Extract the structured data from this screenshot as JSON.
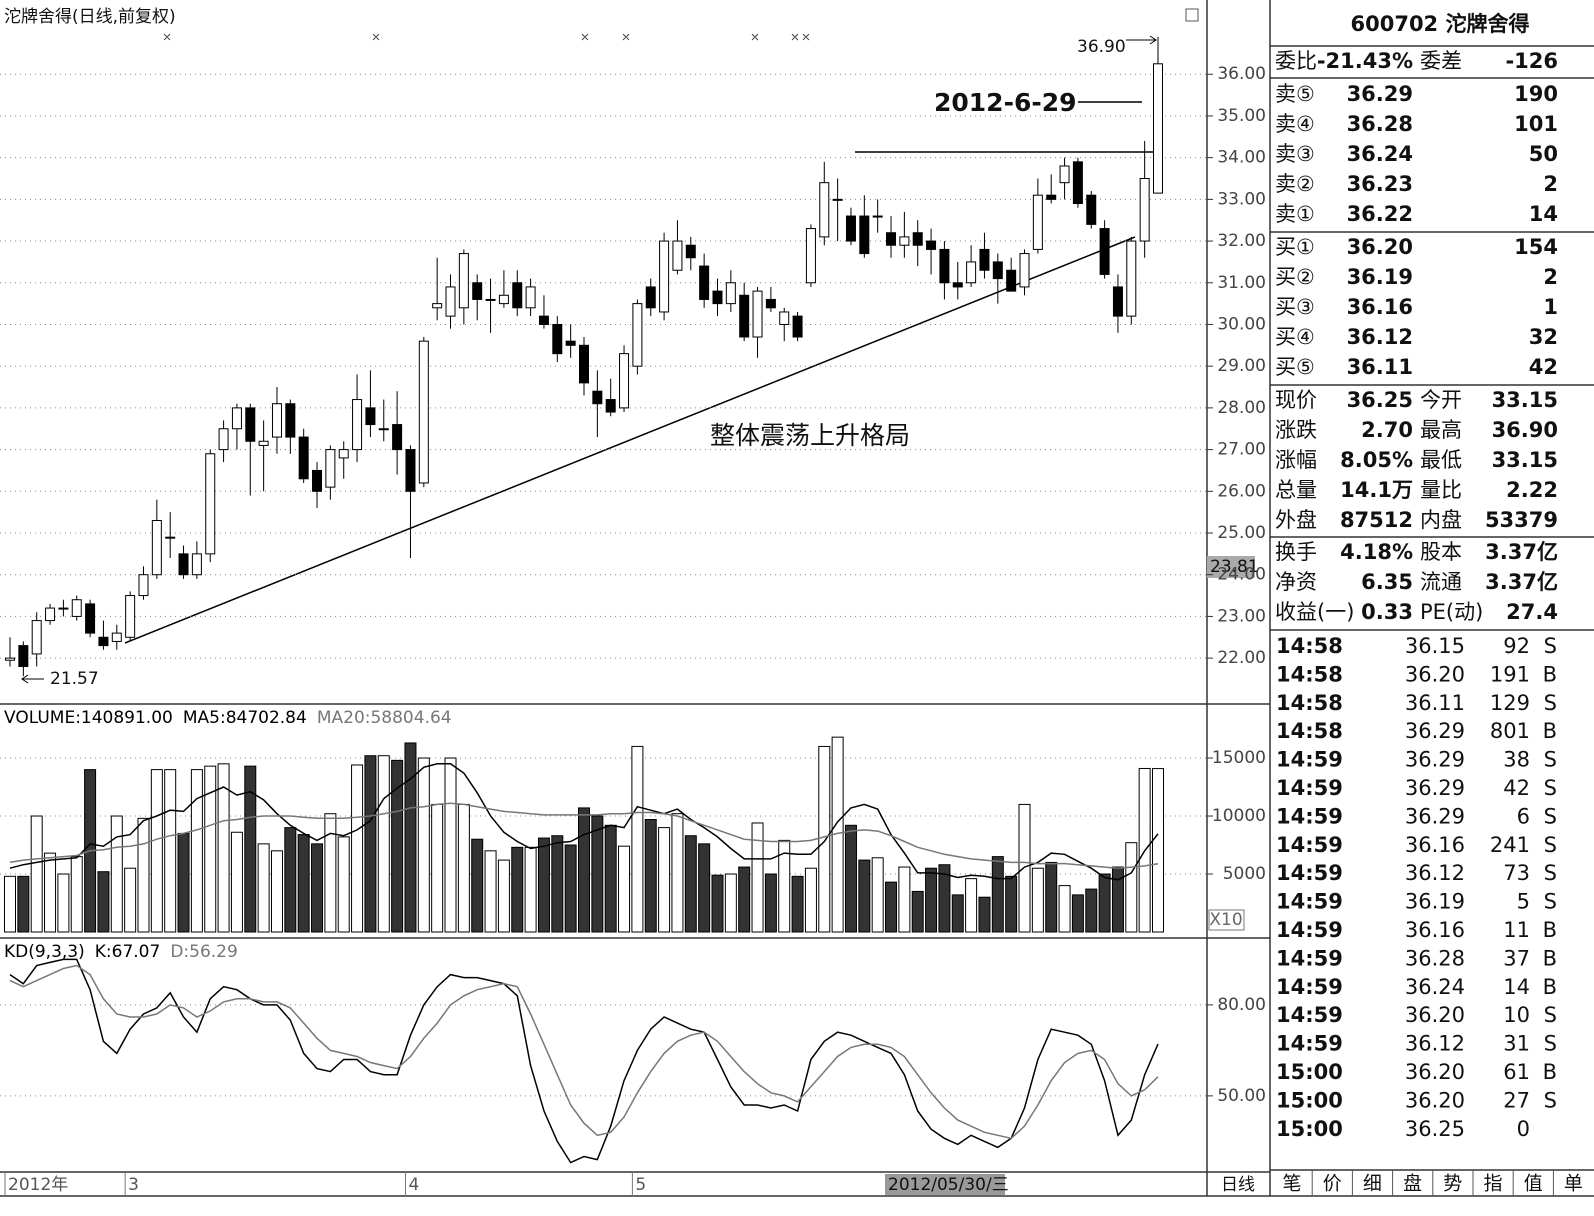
{
  "chart_data": [
    {
      "type": "candlestick",
      "title": "沱牌舍得(日线,前复权)",
      "categories": [
        "2012年",
        null,
        null,
        null,
        null,
        null,
        null,
        null,
        null,
        "3",
        null,
        null,
        null,
        null,
        null,
        null,
        null,
        null,
        null,
        null,
        null,
        null,
        null,
        null,
        null,
        null,
        null,
        null,
        null,
        null,
        "4",
        null,
        null,
        null,
        null,
        null,
        null,
        null,
        null,
        null,
        null,
        null,
        null,
        null,
        null,
        null,
        null,
        "5",
        null,
        null,
        null,
        null,
        null,
        null,
        null,
        null,
        null,
        null,
        null,
        null,
        null,
        null,
        null,
        null,
        null,
        null,
        null,
        null,
        null,
        null,
        null,
        null,
        null,
        null,
        null,
        null,
        null,
        null,
        null,
        null,
        null,
        null,
        null,
        null,
        null,
        null,
        null
      ],
      "open": [
        21.95,
        22.3,
        22.1,
        22.9,
        23.2,
        23.0,
        23.3,
        22.5,
        22.4,
        22.5,
        23.5,
        24.0,
        24.9,
        24.5,
        24.0,
        24.5,
        27.0,
        27.5,
        28.0,
        27.1,
        27.3,
        28.1,
        27.3,
        26.5,
        26.1,
        26.8,
        27.0,
        28.0,
        27.5,
        27.6,
        27.0,
        26.2,
        30.4,
        30.2,
        30.4,
        31.0,
        30.6,
        30.5,
        31.0,
        30.4,
        30.2,
        30.0,
        29.6,
        29.5,
        28.4,
        28.2,
        28.0,
        29.0,
        30.9,
        30.3,
        31.3,
        31.9,
        31.4,
        30.8,
        30.5,
        30.7,
        29.7,
        30.6,
        30.0,
        30.2,
        31.0,
        32.1,
        33.0,
        32.6,
        32.6,
        32.6,
        32.2,
        31.9,
        32.2,
        32.0,
        31.8,
        31.0,
        31.0,
        31.8,
        31.5,
        31.3,
        30.9,
        31.8,
        33.1,
        33.4,
        33.9,
        33.1,
        32.3,
        30.9,
        30.2,
        32.0,
        33.15
      ],
      "high": [
        22.5,
        22.4,
        23.1,
        23.3,
        23.4,
        23.5,
        23.4,
        22.9,
        22.8,
        23.6,
        24.2,
        25.8,
        25.5,
        24.7,
        24.8,
        27.0,
        27.7,
        28.1,
        28.1,
        27.7,
        28.5,
        28.2,
        27.5,
        26.7,
        27.1,
        27.2,
        28.8,
        28.9,
        28.2,
        28.4,
        27.1,
        29.7,
        31.6,
        31.2,
        31.8,
        31.2,
        31.1,
        31.3,
        31.3,
        31.1,
        30.7,
        30.2,
        30.0,
        29.7,
        28.9,
        28.7,
        29.5,
        30.6,
        31.1,
        32.2,
        32.5,
        32.1,
        31.7,
        31.1,
        31.3,
        31.0,
        30.9,
        30.9,
        30.4,
        30.3,
        32.4,
        33.9,
        33.5,
        32.8,
        33.1,
        33.0,
        32.6,
        32.7,
        32.5,
        32.3,
        32.0,
        31.5,
        31.9,
        32.2,
        31.7,
        31.6,
        31.8,
        33.5,
        33.6,
        34.0,
        34.0,
        33.2,
        32.5,
        31.2,
        32.1,
        34.4,
        36.9
      ],
      "low": [
        21.8,
        21.57,
        21.8,
        22.8,
        23.0,
        22.9,
        22.5,
        22.2,
        22.2,
        22.4,
        23.4,
        23.9,
        24.4,
        23.9,
        23.9,
        24.3,
        26.7,
        27.0,
        25.9,
        26.0,
        26.9,
        26.9,
        26.2,
        25.6,
        25.8,
        26.3,
        26.7,
        27.3,
        27.2,
        26.4,
        24.4,
        26.1,
        30.1,
        29.9,
        30.0,
        30.1,
        29.8,
        30.4,
        30.2,
        30.2,
        29.9,
        29.1,
        29.2,
        28.3,
        27.3,
        27.8,
        27.9,
        28.8,
        30.2,
        30.1,
        31.2,
        31.3,
        30.4,
        30.2,
        30.3,
        29.6,
        29.2,
        30.3,
        29.6,
        29.6,
        30.9,
        31.9,
        32.0,
        31.9,
        31.6,
        32.2,
        31.6,
        31.6,
        31.4,
        31.2,
        30.6,
        30.6,
        30.9,
        31.1,
        30.5,
        30.8,
        30.7,
        31.7,
        32.9,
        33.0,
        32.8,
        32.3,
        31.1,
        29.8,
        30.0,
        31.6,
        33.15
      ],
      "close": [
        22.0,
        21.8,
        22.9,
        23.2,
        23.2,
        23.4,
        22.6,
        22.3,
        22.6,
        23.5,
        24.0,
        25.3,
        24.9,
        24.0,
        24.5,
        26.9,
        27.5,
        28.0,
        27.2,
        27.2,
        28.1,
        27.3,
        26.3,
        26.0,
        27.0,
        27.0,
        28.2,
        27.6,
        27.5,
        27.0,
        26.0,
        29.6,
        30.5,
        30.9,
        31.7,
        30.6,
        30.6,
        30.7,
        30.4,
        30.9,
        30.0,
        29.3,
        29.5,
        28.6,
        28.1,
        27.9,
        29.3,
        30.5,
        30.4,
        32.0,
        32.0,
        31.6,
        30.6,
        30.5,
        31.0,
        29.7,
        30.8,
        30.4,
        30.3,
        29.7,
        32.3,
        33.4,
        33.0,
        32.0,
        31.7,
        32.6,
        31.9,
        32.1,
        31.9,
        31.8,
        31.0,
        30.9,
        31.5,
        31.3,
        31.1,
        30.8,
        31.7,
        33.1,
        33.0,
        33.8,
        32.9,
        32.4,
        31.2,
        30.2,
        32.0,
        33.5,
        36.25
      ],
      "ylim": [
        20.9,
        37.78
      ],
      "yticks": [
        {
          "value": 22,
          "label": "22.00"
        },
        {
          "value": 23,
          "label": "23.00"
        },
        {
          "value": 24,
          "label": "24.00"
        },
        {
          "value": 25,
          "label": "25.00"
        },
        {
          "value": 26,
          "label": "26.00"
        },
        {
          "value": 27,
          "label": "27.00"
        },
        {
          "value": 28,
          "label": "28.00"
        },
        {
          "value": 29,
          "label": "29.00"
        },
        {
          "value": 30,
          "label": "30.00"
        },
        {
          "value": 31,
          "label": "31.00"
        },
        {
          "value": 32,
          "label": "32.00"
        },
        {
          "value": 33,
          "label": "33.00"
        },
        {
          "value": 34,
          "label": "34.00"
        },
        {
          "value": 35,
          "label": "35.00"
        },
        {
          "value": 36,
          "label": "36.00"
        }
      ],
      "grid": true,
      "cursor_value": "23.81",
      "cursor_date": "2012/05/30/三",
      "annotations": [
        "36.90",
        "21.57",
        "2012-6-29",
        "整体震荡上升格局"
      ]
    },
    {
      "type": "bar",
      "legend": [
        "VOLUME:140891.00",
        "MA5:84702.84",
        "MA20:58804.64"
      ],
      "unit": "X10",
      "series": [
        {
          "color": "#000",
          "values": [
            4800,
            4800,
            10000,
            6800,
            5000,
            6500,
            14000,
            5200,
            10000,
            5500,
            9800,
            14000,
            14000,
            8500,
            14000,
            14300,
            14500,
            8600,
            14300,
            7600,
            7000,
            9000,
            8400,
            7600,
            10200,
            8200,
            14400,
            15200,
            15200,
            14800,
            16300,
            15000,
            11000,
            15000,
            11000,
            8000,
            7000,
            6200,
            7300,
            7300,
            8100,
            8300,
            7500,
            10700,
            10000,
            9200,
            7400,
            16000,
            9700,
            9000,
            10200,
            8300,
            7600,
            4900,
            5000,
            5600,
            9400,
            5000,
            7900,
            4800,
            5500,
            16000,
            16800,
            9200,
            6200,
            6400,
            4300,
            5600,
            3500,
            5500,
            5800,
            3200,
            4600,
            3000,
            6500,
            4800,
            11000,
            5500,
            6000,
            4000,
            3200,
            3700,
            5000,
            5600,
            7700,
            14100,
            14089.1
          ]
        },
        {
          "color": "#000",
          "values": [
            5500,
            5800,
            6000,
            6200,
            6300,
            6400,
            7600,
            7400,
            8200,
            8400,
            9600,
            10000,
            10500,
            10400,
            11500,
            12000,
            12500,
            11800,
            12100,
            11400,
            10200,
            9200,
            8500,
            7900,
            8500,
            8300,
            8800,
            9600,
            11500,
            12400,
            13200,
            14200,
            14500,
            14500,
            13700,
            12000,
            10000,
            8600,
            7800,
            7200,
            7400,
            7700,
            7800,
            8400,
            8800,
            9200,
            9000,
            10800,
            10500,
            10200,
            10600,
            9700,
            9000,
            8200,
            7200,
            6300,
            6300,
            6300,
            6800,
            6700,
            6700,
            7800,
            9500,
            10700,
            11000,
            10600,
            8400,
            6800,
            5100,
            5100,
            5000,
            4700,
            4900,
            4800,
            4600,
            4600,
            5600,
            6000,
            6800,
            6700,
            6100,
            5500,
            4700,
            4500,
            5100,
            7000,
            8470
          ]
        },
        {
          "color": "#777",
          "values": [
            6000,
            6200,
            6300,
            6400,
            6500,
            6600,
            7000,
            7100,
            7300,
            7400,
            7600,
            8000,
            8300,
            8500,
            8800,
            9200,
            9600,
            9700,
            9900,
            10000,
            10000,
            10000,
            9900,
            9800,
            9800,
            9800,
            9900,
            10000,
            10200,
            10400,
            10700,
            10800,
            11000,
            11100,
            11000,
            10800,
            10600,
            10400,
            10300,
            10200,
            10100,
            10100,
            10100,
            10100,
            10100,
            10200,
            10200,
            10300,
            10300,
            10200,
            10000,
            9600,
            9200,
            8800,
            8400,
            8000,
            7900,
            7800,
            7800,
            7800,
            7900,
            8200,
            8500,
            8700,
            8800,
            8700,
            8300,
            7800,
            7300,
            7000,
            6700,
            6500,
            6300,
            6200,
            6100,
            6000,
            6000,
            5900,
            5900,
            5900,
            5800,
            5700,
            5600,
            5500,
            5600,
            5700,
            5880
          ]
        }
      ],
      "ylim": [
        0,
        19400
      ],
      "yticks": [
        5000,
        10000,
        15000
      ],
      "grid": true
    },
    {
      "type": "line",
      "legend": [
        "KD(9,3,3)",
        "K:67.07",
        "D:56.29"
      ],
      "series": [
        {
          "color": "#000",
          "values": [
            90,
            87,
            93,
            94,
            95,
            95,
            85,
            68,
            64,
            72,
            77,
            79,
            84,
            76,
            71,
            82,
            86,
            85,
            82,
            80,
            80,
            75,
            64,
            59,
            58,
            62,
            62,
            58,
            57,
            57,
            70,
            80,
            86,
            90,
            89,
            89,
            88,
            87,
            83,
            60,
            45,
            35,
            28,
            30,
            29,
            40,
            55,
            65,
            72,
            76,
            74,
            72,
            71,
            62,
            53,
            47,
            47,
            46,
            47,
            45,
            62,
            68,
            71,
            70,
            68,
            66,
            64,
            57,
            45,
            39,
            36,
            34,
            37,
            35,
            33,
            36,
            46,
            62,
            72,
            71,
            70,
            67,
            55,
            37,
            42,
            57,
            67.07
          ]
        },
        {
          "color": "#777",
          "values": [
            88,
            86,
            88,
            90,
            92,
            93,
            90,
            82,
            77,
            76,
            76,
            77,
            80,
            79,
            76,
            78,
            81,
            82,
            82,
            81,
            81,
            79,
            74,
            69,
            65,
            64,
            63,
            61,
            60,
            59,
            63,
            69,
            74,
            80,
            83,
            85,
            86,
            87,
            86,
            77,
            67,
            57,
            47,
            41,
            37,
            38,
            43,
            51,
            58,
            64,
            68,
            70,
            71,
            68,
            63,
            58,
            54,
            51,
            50,
            48,
            53,
            58,
            63,
            66,
            67,
            67,
            66,
            63,
            57,
            51,
            46,
            42,
            40,
            38,
            37,
            36,
            40,
            47,
            55,
            61,
            64,
            65,
            62,
            54,
            50,
            52,
            56.29
          ]
        }
      ],
      "ylim": [
        24.9,
        101.4
      ],
      "yticks": [
        {
          "value": 50,
          "label": "50.00"
        },
        {
          "value": 80,
          "label": "80.00"
        }
      ],
      "grid": true
    }
  ],
  "period": "日线",
  "quote": {
    "header": "600702 沱牌舍得",
    "ratio": [
      "委比",
      "-21.43%",
      "委差",
      "-126"
    ],
    "asks": [
      [
        "卖⑤",
        "36.29",
        "190"
      ],
      [
        "卖④",
        "36.28",
        "101"
      ],
      [
        "卖③",
        "36.24",
        "50"
      ],
      [
        "卖②",
        "36.23",
        "2"
      ],
      [
        "卖①",
        "36.22",
        "14"
      ]
    ],
    "bids": [
      [
        "买①",
        "36.20",
        "154"
      ],
      [
        "买②",
        "36.19",
        "2"
      ],
      [
        "买③",
        "36.16",
        "1"
      ],
      [
        "买④",
        "36.12",
        "32"
      ],
      [
        "买⑤",
        "36.11",
        "42"
      ]
    ],
    "stats": [
      [
        "现价",
        "36.25",
        "今开",
        "33.15"
      ],
      [
        "涨跌",
        "2.70",
        "最高",
        "36.90"
      ],
      [
        "涨幅",
        "8.05%",
        "最低",
        "33.15"
      ],
      [
        "总量",
        "14.1万",
        "量比",
        "2.22"
      ],
      [
        "外盘",
        "87512",
        "内盘",
        "53379"
      ]
    ],
    "stats2": [
      [
        "换手",
        "4.18%",
        "股本",
        "3.37亿"
      ],
      [
        "净资",
        "6.35",
        "流通",
        "3.37亿"
      ],
      [
        "收益(一)",
        "0.33",
        "PE(动)",
        "27.4"
      ]
    ],
    "trades": [
      [
        "14:58",
        "36.15",
        "92",
        "S"
      ],
      [
        "14:58",
        "36.20",
        "191",
        "B"
      ],
      [
        "14:58",
        "36.11",
        "129",
        "S"
      ],
      [
        "14:58",
        "36.29",
        "801",
        "B"
      ],
      [
        "14:59",
        "36.29",
        "38",
        "S"
      ],
      [
        "14:59",
        "36.29",
        "42",
        "S"
      ],
      [
        "14:59",
        "36.29",
        "6",
        "S"
      ],
      [
        "14:59",
        "36.16",
        "241",
        "S"
      ],
      [
        "14:59",
        "36.12",
        "73",
        "S"
      ],
      [
        "14:59",
        "36.19",
        "5",
        "S"
      ],
      [
        "14:59",
        "36.16",
        "11",
        "B"
      ],
      [
        "14:59",
        "36.28",
        "37",
        "B"
      ],
      [
        "14:59",
        "36.24",
        "14",
        "B"
      ],
      [
        "14:59",
        "36.20",
        "10",
        "S"
      ],
      [
        "14:59",
        "36.12",
        "31",
        "S"
      ],
      [
        "15:00",
        "36.20",
        "61",
        "B"
      ],
      [
        "15:00",
        "36.20",
        "27",
        "S"
      ],
      [
        "15:00",
        "36.25",
        "0"
      ]
    ],
    "tabs": [
      "笔",
      "价",
      "细",
      "盘",
      "势",
      "指",
      "值",
      "单"
    ]
  }
}
